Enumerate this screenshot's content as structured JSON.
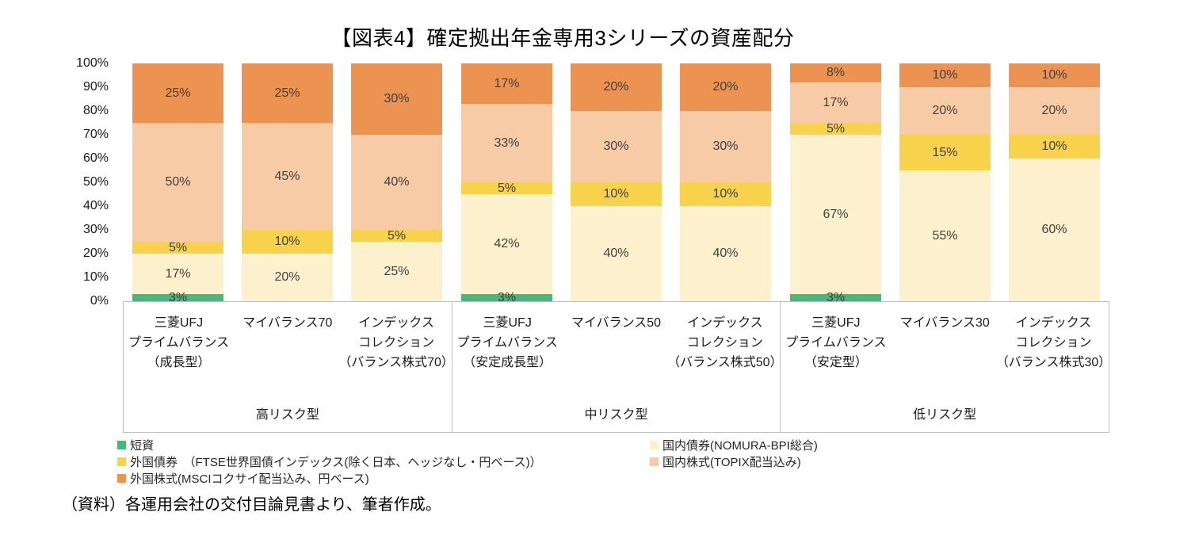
{
  "title": "【図表4】確定拠出年金専用3シリーズの資産配分",
  "note": "（資料）各運用会社の交付目論見書より、筆者作成。",
  "chart_data": {
    "type": "bar",
    "stacked": true,
    "percent": true,
    "ylim": [
      0,
      100
    ],
    "yticks": [
      "100%",
      "90%",
      "80%",
      "70%",
      "60%",
      "50%",
      "40%",
      "30%",
      "20%",
      "10%",
      "0%"
    ],
    "stack_order": [
      "tanshi",
      "kokunai_saiken",
      "gaikoku_saiken",
      "kokunai_kabushiki",
      "gaikoku_kabushiki"
    ],
    "series": [
      {
        "key": "tanshi",
        "name": "短資",
        "color": "#45b97c"
      },
      {
        "key": "kokunai_saiken",
        "name": "国内債券(NOMURA-BPI総合)",
        "color": "#fdf0cd"
      },
      {
        "key": "gaikoku_saiken",
        "name": "外国債券（FTSE世界国債インデックス(除く日本、ヘッジなし・円ベース)）",
        "color": "#f8d24a"
      },
      {
        "key": "kokunai_kabushiki",
        "name": "国内株式(TOPIX配当込み)",
        "color": "#f6cba6"
      },
      {
        "key": "gaikoku_kabushiki",
        "name": "外国株式(MSCIコクサイ配当込み、円ベース)",
        "color": "#ec9351"
      }
    ],
    "groups": [
      {
        "label": "高リスク型",
        "bars": [
          {
            "name_lines": [
              "三菱UFJ",
              "プライムバランス",
              "（成長型）"
            ],
            "values": {
              "tanshi": 3,
              "kokunai_saiken": 17,
              "gaikoku_saiken": 5,
              "kokunai_kabushiki": 50,
              "gaikoku_kabushiki": 25
            }
          },
          {
            "name_lines": [
              "マイバランス70"
            ],
            "values": {
              "tanshi": 0,
              "kokunai_saiken": 20,
              "gaikoku_saiken": 10,
              "kokunai_kabushiki": 45,
              "gaikoku_kabushiki": 25
            }
          },
          {
            "name_lines": [
              "インデックス",
              "コレクション",
              "（バランス株式70）"
            ],
            "values": {
              "tanshi": 0,
              "kokunai_saiken": 25,
              "gaikoku_saiken": 5,
              "kokunai_kabushiki": 40,
              "gaikoku_kabushiki": 30
            }
          }
        ]
      },
      {
        "label": "中リスク型",
        "bars": [
          {
            "name_lines": [
              "三菱UFJ",
              "プライムバランス",
              "（安定成長型）"
            ],
            "values": {
              "tanshi": 3,
              "kokunai_saiken": 42,
              "gaikoku_saiken": 5,
              "kokunai_kabushiki": 33,
              "gaikoku_kabushiki": 17
            }
          },
          {
            "name_lines": [
              "マイバランス50"
            ],
            "values": {
              "tanshi": 0,
              "kokunai_saiken": 40,
              "gaikoku_saiken": 10,
              "kokunai_kabushiki": 30,
              "gaikoku_kabushiki": 20
            }
          },
          {
            "name_lines": [
              "インデックス",
              "コレクション",
              "（バランス株式50）"
            ],
            "values": {
              "tanshi": 0,
              "kokunai_saiken": 40,
              "gaikoku_saiken": 10,
              "kokunai_kabushiki": 30,
              "gaikoku_kabushiki": 20
            }
          }
        ]
      },
      {
        "label": "低リスク型",
        "bars": [
          {
            "name_lines": [
              "三菱UFJ",
              "プライムバランス",
              "（安定型）"
            ],
            "values": {
              "tanshi": 3,
              "kokunai_saiken": 67,
              "gaikoku_saiken": 5,
              "kokunai_kabushiki": 17,
              "gaikoku_kabushiki": 8
            }
          },
          {
            "name_lines": [
              "マイバランス30"
            ],
            "values": {
              "tanshi": 0,
              "kokunai_saiken": 55,
              "gaikoku_saiken": 15,
              "kokunai_kabushiki": 20,
              "gaikoku_kabushiki": 10
            }
          },
          {
            "name_lines": [
              "インデックス",
              "コレクション",
              "（バランス株式30）"
            ],
            "values": {
              "tanshi": 0,
              "kokunai_saiken": 60,
              "gaikoku_saiken": 10,
              "kokunai_kabushiki": 20,
              "gaikoku_kabushiki": 10
            }
          }
        ]
      }
    ]
  },
  "legend": {
    "left": [
      {
        "color_key": "tanshi",
        "label": "短資"
      },
      {
        "color_key": "gaikoku_saiken",
        "label": "外国債券　（FTSE世界国債インデックス(除く日本、ヘッジなし・円ベース)）"
      },
      {
        "color_key": "gaikoku_kabushiki",
        "label": "外国株式(MSCIコクサイ配当込み、円ベース)"
      }
    ],
    "right": [
      {
        "color_key": "kokunai_saiken",
        "label": "国内債券(NOMURA-BPI総合)"
      },
      {
        "color_key": "kokunai_kabushiki",
        "label": "国内株式(TOPIX配当込み)"
      }
    ]
  }
}
